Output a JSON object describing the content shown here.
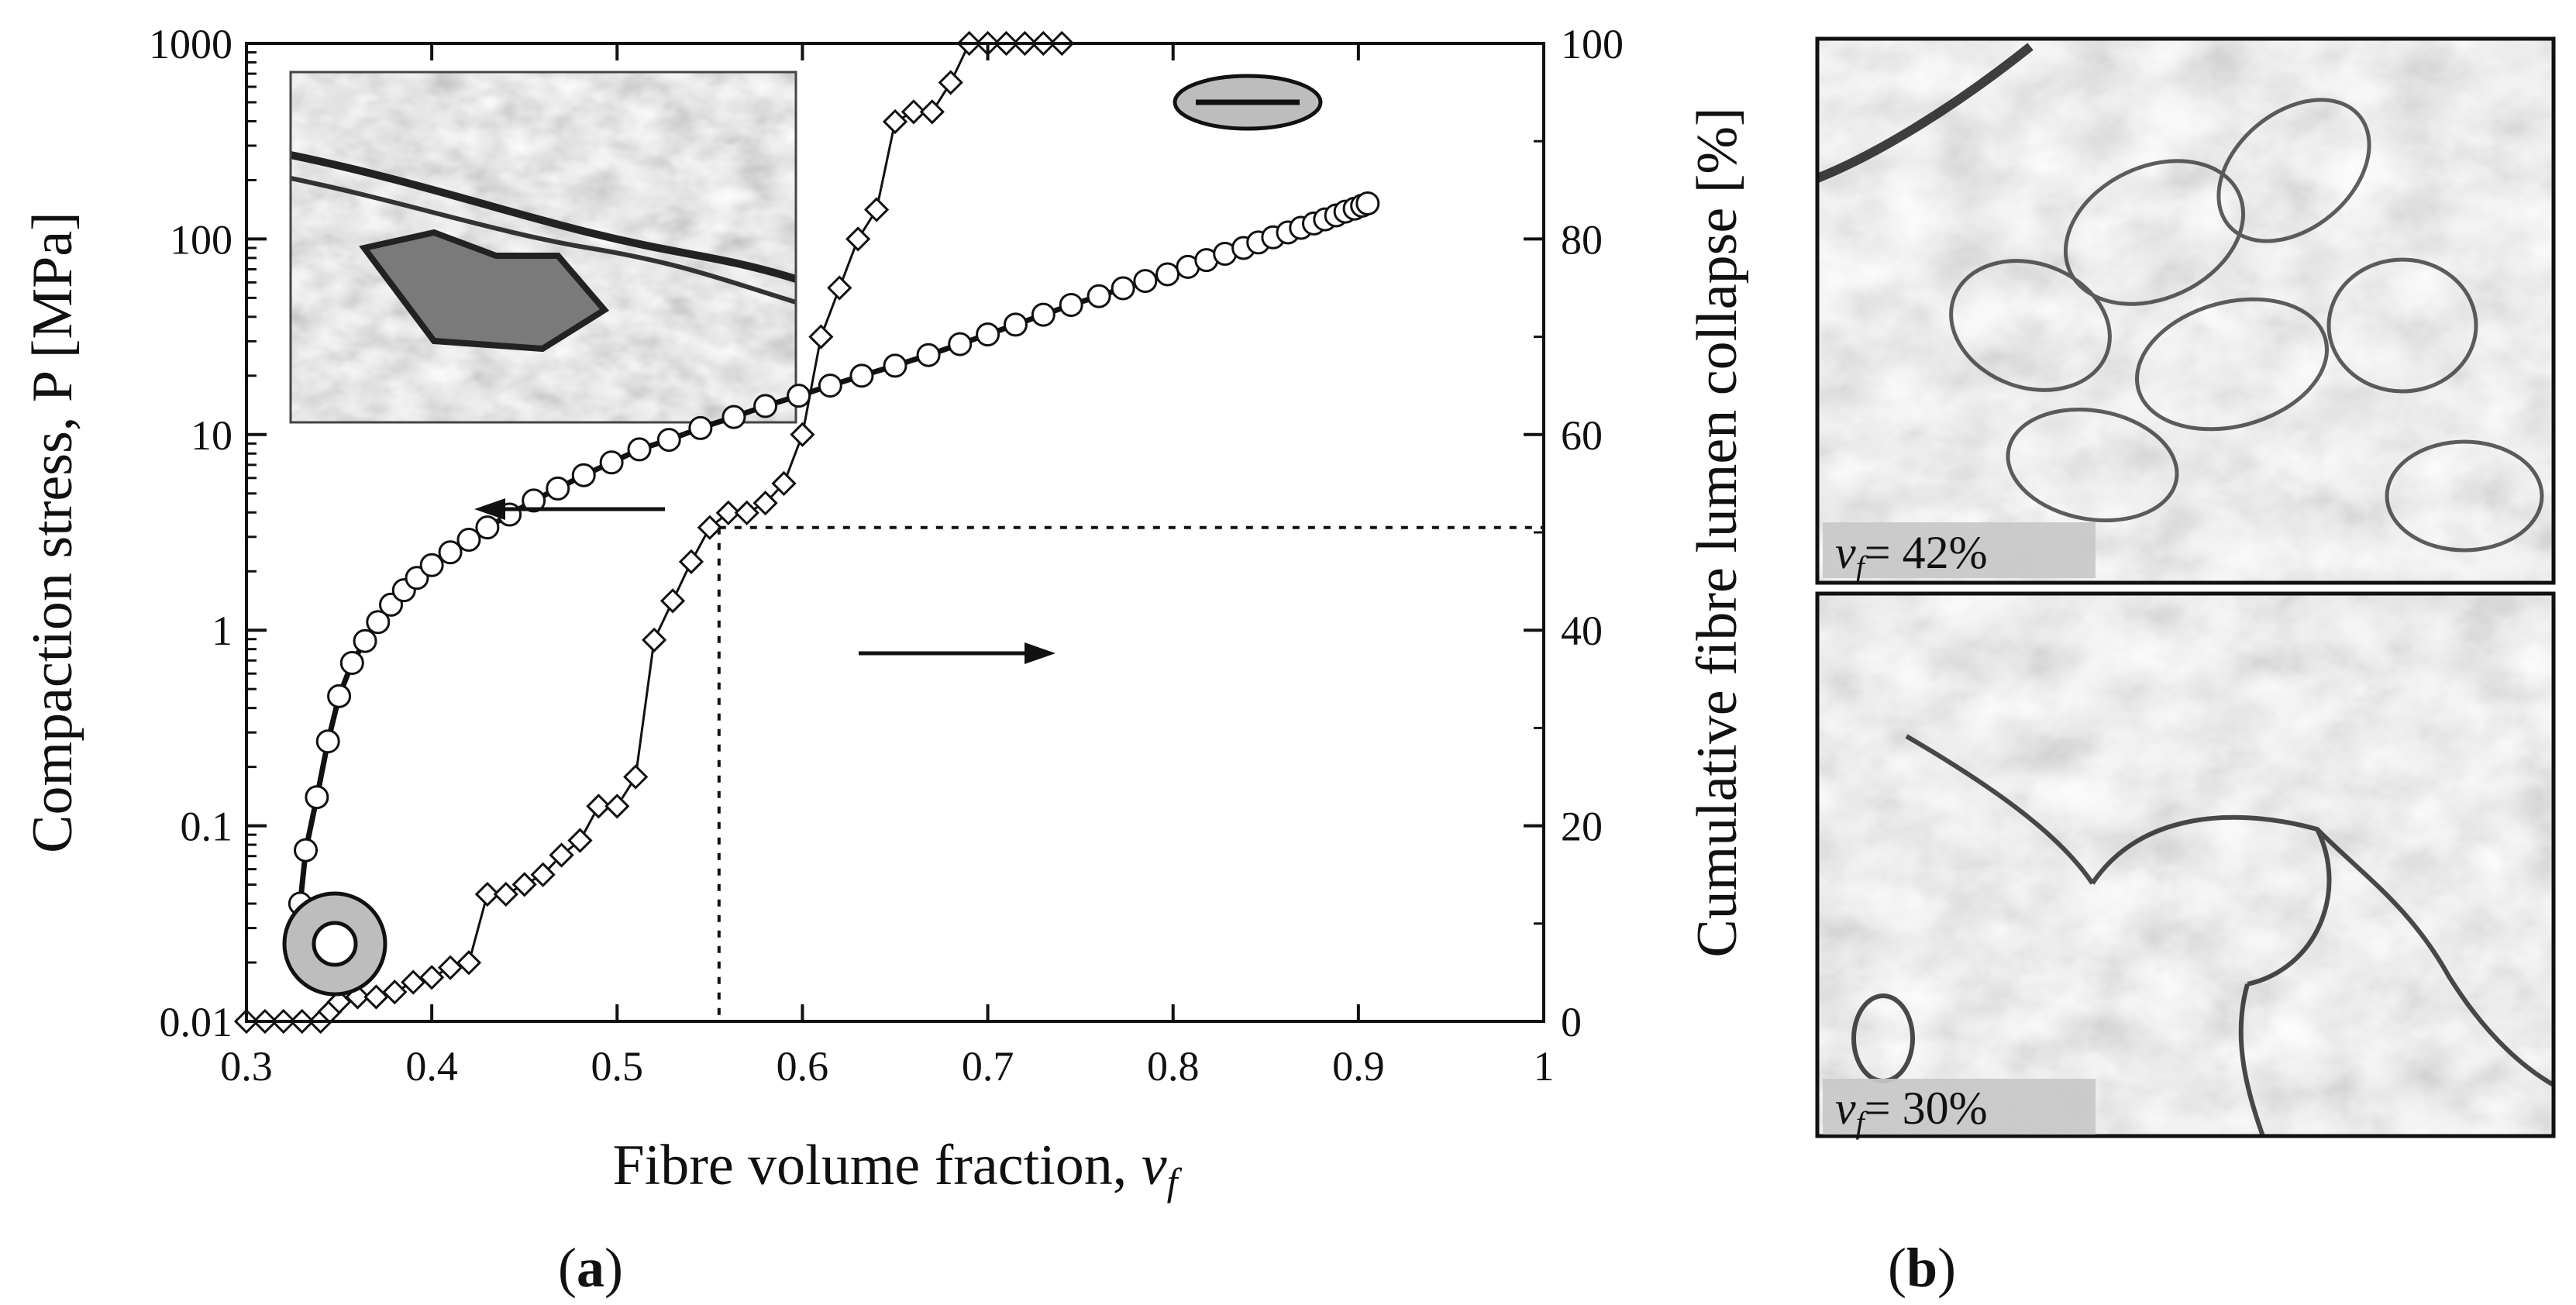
{
  "panels": {
    "a_label": "(a)",
    "b_label": "(b)"
  },
  "micrographs": {
    "top_caption_var": "v",
    "top_caption_sub": "f",
    "top_caption_value": "= 42%",
    "bottom_caption_var": "v",
    "bottom_caption_sub": "f",
    "bottom_caption_value": "= 30%"
  },
  "chart_data": {
    "type": "line",
    "xlabel": "Fibre volume fraction, ",
    "xlabel_var": "v",
    "xlabel_sub": "f",
    "ylabel_left": "Compaction stress, P [MPa]",
    "ylabel_right": "Cumulative fibre lumen collapse [%]",
    "x_ticks": [
      "0.3",
      "0.4",
      "0.5",
      "0.6",
      "0.7",
      "0.8",
      "0.9",
      "1"
    ],
    "y_left_ticks": [
      "0.01",
      "0.1",
      "1",
      "10",
      "100",
      "1000"
    ],
    "y_right_ticks": [
      "0",
      "20",
      "40",
      "60",
      "80",
      "100"
    ],
    "xlim": [
      0.3,
      1.0
    ],
    "ylim_left": [
      0.01,
      1000
    ],
    "ylim_left_scale": "log",
    "ylim_right": [
      0,
      100
    ],
    "series": [
      {
        "axis": "left",
        "marker": "circle",
        "x": [
          0.329,
          0.332,
          0.338,
          0.344,
          0.35,
          0.357,
          0.364,
          0.371,
          0.378,
          0.385,
          0.392,
          0.4,
          0.41,
          0.42,
          0.43,
          0.442,
          0.455,
          0.468,
          0.482,
          0.497,
          0.512,
          0.528,
          0.545,
          0.563,
          0.58,
          0.598,
          0.615,
          0.632,
          0.65,
          0.668,
          0.685,
          0.7,
          0.715,
          0.73,
          0.745,
          0.76,
          0.773,
          0.785,
          0.797,
          0.808,
          0.818,
          0.828,
          0.838,
          0.846,
          0.854,
          0.862,
          0.869,
          0.876,
          0.882,
          0.888,
          0.893,
          0.898,
          0.902,
          0.905
        ],
        "y": [
          0.04,
          0.075,
          0.14,
          0.27,
          0.46,
          0.68,
          0.88,
          1.1,
          1.35,
          1.6,
          1.85,
          2.15,
          2.5,
          2.9,
          3.35,
          3.9,
          4.6,
          5.3,
          6.2,
          7.2,
          8.4,
          9.4,
          10.8,
          12.3,
          14.0,
          15.8,
          17.8,
          20.0,
          22.5,
          25.5,
          29.0,
          32.5,
          36.5,
          41.0,
          46.0,
          51.0,
          56.0,
          61.0,
          66.0,
          72.0,
          78.0,
          84.0,
          90.0,
          96.0,
          102.0,
          108.0,
          114.0,
          120.0,
          126.0,
          132.0,
          138.0,
          143.0,
          148.0,
          152.0
        ]
      },
      {
        "axis": "right",
        "marker": "diamond",
        "x": [
          0.3,
          0.31,
          0.32,
          0.33,
          0.34,
          0.345,
          0.35,
          0.36,
          0.37,
          0.38,
          0.39,
          0.4,
          0.41,
          0.42,
          0.43,
          0.44,
          0.45,
          0.46,
          0.47,
          0.48,
          0.49,
          0.5,
          0.51,
          0.52,
          0.53,
          0.54,
          0.55,
          0.56,
          0.57,
          0.58,
          0.59,
          0.6,
          0.61,
          0.62,
          0.63,
          0.64,
          0.65,
          0.66,
          0.67,
          0.68,
          0.69,
          0.7,
          0.71,
          0.72,
          0.73,
          0.74
        ],
        "y": [
          0,
          0,
          0,
          0,
          0,
          1,
          2,
          2.5,
          2.5,
          3,
          4,
          4.5,
          5.5,
          6,
          13,
          13,
          14,
          15,
          17,
          18.5,
          22,
          22,
          25,
          39,
          43,
          47,
          50.5,
          52,
          52,
          53,
          55,
          60,
          70,
          75,
          80,
          83,
          92,
          93,
          93,
          96,
          100,
          100,
          100,
          100,
          100,
          100
        ]
      }
    ],
    "reference_lines": {
      "vertical_x": 0.555,
      "horizontal_right_y": 50.5
    }
  }
}
